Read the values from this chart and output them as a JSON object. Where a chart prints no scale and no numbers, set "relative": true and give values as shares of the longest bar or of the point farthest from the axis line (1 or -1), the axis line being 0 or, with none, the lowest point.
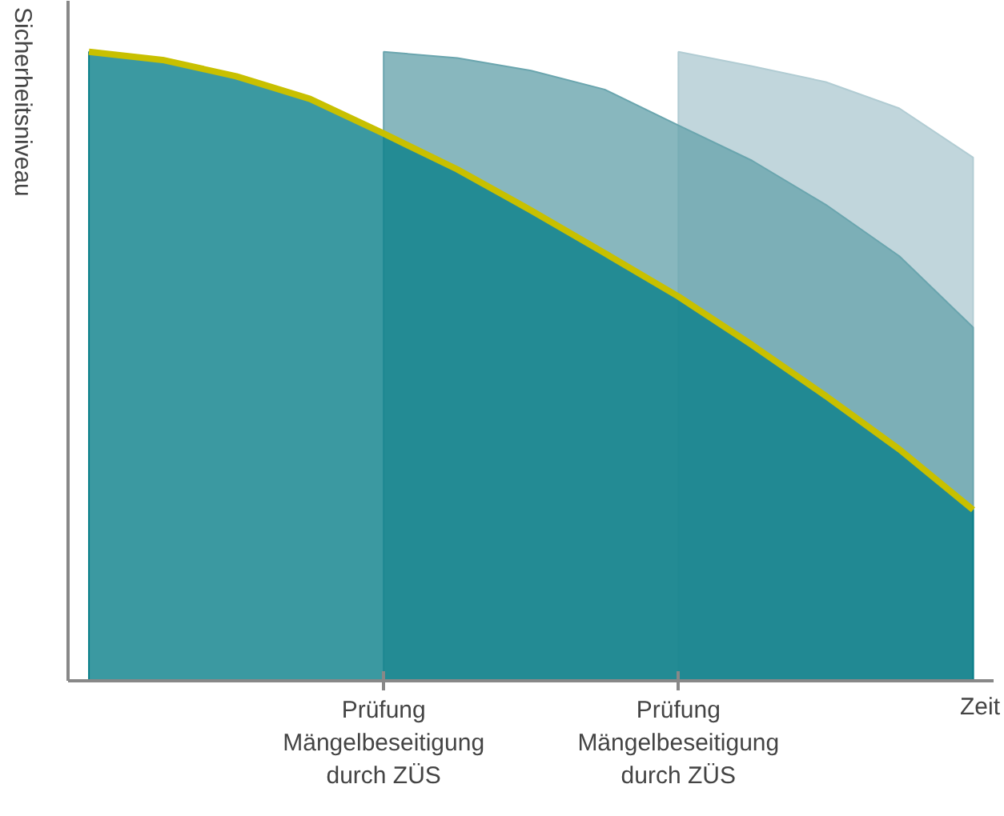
{
  "chart_data": {
    "type": "area",
    "relative": true,
    "xlabel": "Zeit",
    "ylabel": "Sicherheitsniveau",
    "categories": [
      null,
      null,
      null,
      null,
      "Prüfung\nMängelbeseitigung\ndurch ZÜS",
      null,
      null,
      null,
      "Prüfung\nMängelbeseitigung\ndurch ZÜS",
      null,
      null,
      null,
      null
    ],
    "grid": false,
    "series": [
      {
        "color": "#b1ccd3",
        "values": [
          null,
          null,
          null,
          null,
          null,
          null,
          null,
          null,
          1.0,
          0.977,
          0.952,
          0.91,
          0.832
        ]
      },
      {
        "color": "#6aa5ae",
        "values": [
          null,
          null,
          null,
          null,
          1.0,
          0.99,
          0.97,
          0.94,
          0.883,
          0.827,
          0.757,
          0.675,
          0.562
        ]
      },
      {
        "color": "#0a7f8a",
        "values": [
          1.0,
          0.987,
          0.961,
          0.925,
          0.87,
          0.813,
          0.748,
          0.68,
          0.611,
          0.534,
          0.453,
          0.368,
          0.272
        ]
      },
      {
        "type": "line",
        "color": "#c8c000",
        "values": [
          1.0,
          0.987,
          0.961,
          0.925,
          0.87,
          0.813,
          0.748,
          0.68,
          0.611,
          0.534,
          0.453,
          0.368,
          0.272
        ]
      }
    ]
  }
}
